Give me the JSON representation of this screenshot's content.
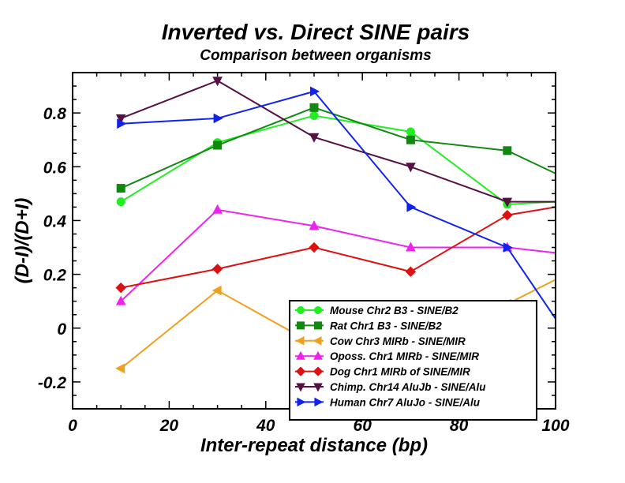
{
  "chart_data": {
    "type": "line",
    "title": "Inverted vs. Direct SINE pairs",
    "subtitle": "Comparison between organisms",
    "xlabel": "Inter-repeat distance (bp)",
    "ylabel": "(D-I)/(D+I)",
    "xlim": [
      0,
      100
    ],
    "ylim": [
      -0.3,
      0.95
    ],
    "x_ticks": [
      0,
      20,
      40,
      60,
      80,
      100
    ],
    "x_tick_labels": [
      "0",
      "20",
      "40",
      "60",
      "80",
      "100"
    ],
    "y_ticks": [
      -0.2,
      0,
      0.2,
      0.4,
      0.6,
      0.8
    ],
    "y_tick_labels": [
      "-0.2",
      "0",
      "0.2",
      "0.4",
      "0.6",
      "0.8"
    ],
    "grid": false,
    "legend_position": "bottom-right",
    "series": [
      {
        "name": "Mouse Chr2 B3 - SINE/B2",
        "color": "#22ee22",
        "marker": "circle",
        "x": [
          10,
          30,
          50,
          70,
          90,
          110
        ],
        "y": [
          0.47,
          0.69,
          0.79,
          0.73,
          0.46,
          0.48
        ]
      },
      {
        "name": "Rat Chr1 B3 - SINE/B2",
        "color": "#118811",
        "marker": "square",
        "x": [
          10,
          30,
          50,
          70,
          90,
          110
        ],
        "y": [
          0.52,
          0.68,
          0.82,
          0.7,
          0.66,
          0.49
        ]
      },
      {
        "name": "Cow Chr3 MIRb - SINE/MIR",
        "color": "#f0a020",
        "marker": "triangle-left",
        "x": [
          10,
          30,
          50,
          70,
          90,
          110
        ],
        "y": [
          -0.15,
          0.14,
          -0.06,
          -0.12,
          0.09,
          0.27
        ]
      },
      {
        "name": "Oposs. Chr1 MIRb - SINE/MIR",
        "color": "#ee22ee",
        "marker": "triangle-up",
        "x": [
          10,
          30,
          50,
          70,
          90,
          110
        ],
        "y": [
          0.1,
          0.44,
          0.38,
          0.3,
          0.3,
          0.26
        ]
      },
      {
        "name": "Dog Chr1 MIRb of SINE/MIR",
        "color": "#dd1111",
        "marker": "diamond",
        "x": [
          10,
          30,
          50,
          70,
          90,
          110
        ],
        "y": [
          0.15,
          0.22,
          0.3,
          0.21,
          0.42,
          0.48
        ]
      },
      {
        "name": "Chimp. Chr14 AluJb - SINE/Alu",
        "color": "#551144",
        "marker": "triangle-down",
        "x": [
          10,
          30,
          50,
          70,
          90,
          110
        ],
        "y": [
          0.78,
          0.92,
          0.71,
          0.6,
          0.47,
          0.47
        ]
      },
      {
        "name": "Human Chr7 AluJo - SINE/Alu",
        "color": "#1122ee",
        "marker": "triangle-right",
        "x": [
          10,
          30,
          50,
          70,
          90,
          110
        ],
        "y": [
          0.76,
          0.78,
          0.88,
          0.45,
          0.3,
          -0.23
        ]
      }
    ]
  }
}
